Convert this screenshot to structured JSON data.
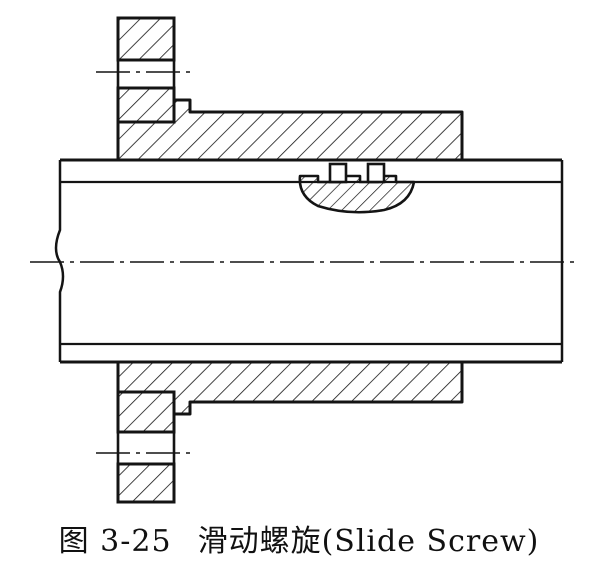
{
  "figure": {
    "caption_number": "图 3-25",
    "caption_title": "滑动螺旋",
    "caption_english": "(Slide Screw)"
  },
  "colors": {
    "line": "#141414",
    "background": "#ffffff"
  }
}
